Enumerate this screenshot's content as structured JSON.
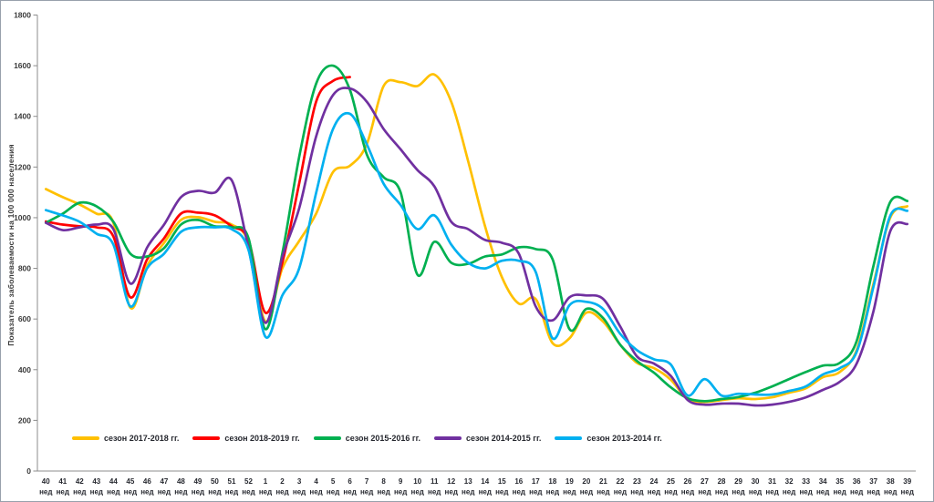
{
  "chart": {
    "background": "#ffffff",
    "border_color": "#98a0ac",
    "axis_color": "#8c8c8c",
    "ytick_label_color": "#3a3a3a",
    "xtick_label_color": "#26282f"
  },
  "chart_data": {
    "type": "line",
    "title": "",
    "ylabel": "Показатель заболеваемости на 100 000 населения",
    "xlabel": "",
    "x_unit_label": "нед",
    "ylim": [
      0,
      1800
    ],
    "yticks": [
      0,
      200,
      400,
      600,
      800,
      1000,
      1200,
      1400,
      1600,
      1800
    ],
    "grid": false,
    "smooth": true,
    "legend_position": "bottom",
    "categories": [
      "40",
      "41",
      "42",
      "43",
      "44",
      "45",
      "46",
      "47",
      "48",
      "49",
      "50",
      "51",
      "52",
      "1",
      "2",
      "3",
      "4",
      "5",
      "6",
      "7",
      "8",
      "9",
      "10",
      "11",
      "12",
      "13",
      "14",
      "15",
      "16",
      "17",
      "18",
      "19",
      "20",
      "21",
      "22",
      "23",
      "24",
      "25",
      "26",
      "27",
      "28",
      "29",
      "30",
      "31",
      "32",
      "33",
      "34",
      "35",
      "36",
      "37",
      "38",
      "39"
    ],
    "series": [
      {
        "name": "сезон 2017-2018 гг.",
        "color": "#FFC000",
        "values": [
          1113,
          1081,
          1052,
          1016,
          980,
          645,
          811,
          901,
          991,
          1002,
          984,
          973,
          901,
          590,
          800,
          908,
          1016,
          1180,
          1205,
          1290,
          1520,
          1535,
          1520,
          1565,
          1458,
          1224,
          966,
          765,
          661,
          679,
          505,
          524,
          625,
          589,
          499,
          427,
          406,
          360,
          284,
          273,
          280,
          287,
          284,
          291,
          309,
          327,
          370,
          391,
          477,
          740,
          1002,
          1045
        ]
      },
      {
        "name": "сезон 2018-2019 гг.",
        "color": "#FF0000",
        "values": [
          985,
          973,
          966,
          962,
          926,
          686,
          836,
          919,
          1016,
          1020,
          1009,
          966,
          912,
          625,
          822,
          1135,
          1458,
          1540,
          1555,
          null,
          null,
          null,
          null,
          null,
          null,
          null,
          null,
          null,
          null,
          null,
          null,
          null,
          null,
          null,
          null,
          null,
          null,
          null,
          null,
          null,
          null,
          null,
          null,
          null,
          null,
          null,
          null,
          null,
          null,
          null,
          null,
          null
        ]
      },
      {
        "name": "сезон 2015-2016 гг.",
        "color": "#00B050",
        "values": [
          980,
          1016,
          1059,
          1045,
          984,
          858,
          847,
          880,
          973,
          991,
          966,
          962,
          919,
          560,
          858,
          1240,
          1529,
          1600,
          1505,
          1250,
          1160,
          1100,
          775,
          905,
          822,
          818,
          847,
          855,
          883,
          876,
          836,
          560,
          640,
          603,
          499,
          434,
          388,
          330,
          287,
          276,
          284,
          292,
          309,
          334,
          363,
          391,
          416,
          427,
          513,
          811,
          1063,
          1066
        ]
      },
      {
        "name": "сезон 2014-2015 гг.",
        "color": "#7030A0",
        "values": [
          980,
          951,
          962,
          973,
          955,
          740,
          883,
          973,
          1081,
          1106,
          1099,
          1148,
          880,
          585,
          845,
          1037,
          1321,
          1484,
          1510,
          1458,
          1350,
          1270,
          1188,
          1124,
          984,
          955,
          912,
          901,
          858,
          650,
          595,
          686,
          693,
          679,
          571,
          452,
          424,
          375,
          280,
          262,
          266,
          266,
          259,
          262,
          273,
          291,
          320,
          352,
          424,
          632,
          948,
          975
        ]
      },
      {
        "name": "сезон 2013-2014 гг.",
        "color": "#00B0F0",
        "values": [
          1030,
          1009,
          984,
          937,
          894,
          650,
          801,
          858,
          944,
          962,
          962,
          955,
          872,
          530,
          693,
          800,
          1098,
          1350,
          1410,
          1290,
          1134,
          1050,
          955,
          1009,
          894,
          822,
          800,
          830,
          830,
          786,
          524,
          655,
          668,
          639,
          542,
          477,
          441,
          420,
          298,
          363,
          298,
          305,
          302,
          302,
          316,
          334,
          381,
          406,
          470,
          729,
          1009,
          1027
        ]
      }
    ]
  }
}
